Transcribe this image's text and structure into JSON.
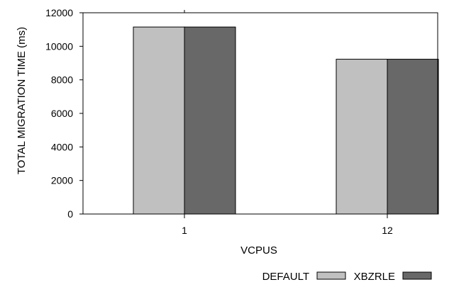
{
  "chart_data": {
    "type": "bar",
    "title": "",
    "xlabel": "VCPUS",
    "ylabel": "TOTAL MIGRATION TIME (ms)",
    "categories": [
      "1",
      "12"
    ],
    "series": [
      {
        "name": "DEFAULT",
        "values": [
          11150,
          9230
        ],
        "color": "#c0c0c0"
      },
      {
        "name": "XBZRLE",
        "values": [
          11150,
          9230
        ],
        "color": "#686868"
      }
    ],
    "ylim": [
      0,
      12000
    ],
    "yticks": [
      "0",
      "2000",
      "4000",
      "6000",
      "8000",
      "10000",
      "12000"
    ],
    "grid": false,
    "legend": "bottom-right"
  }
}
